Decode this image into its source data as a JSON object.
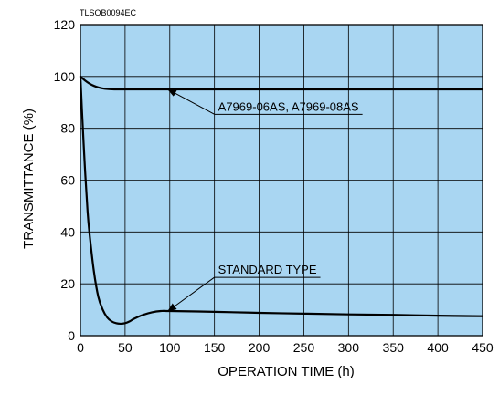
{
  "figure_code": "TLSOB0094EC",
  "chart_data": {
    "type": "line",
    "title": "",
    "xlabel": "OPERATION TIME (h)",
    "ylabel": "TRANSMITTANCE (%)",
    "xlim": [
      0,
      450
    ],
    "ylim": [
      0,
      120
    ],
    "xticks": [
      0,
      50,
      100,
      150,
      200,
      250,
      300,
      350,
      400,
      450
    ],
    "yticks": [
      0,
      20,
      40,
      60,
      80,
      100,
      120
    ],
    "grid": true,
    "plot_background": "#a9d6f2",
    "line_color": "#000000",
    "series": [
      {
        "name": "A7969-06AS, A7969-08AS",
        "x": [
          0,
          5,
          10,
          15,
          20,
          25,
          30,
          40,
          50,
          100,
          200,
          300,
          400,
          450
        ],
        "y": [
          100,
          98.5,
          97.3,
          96.4,
          95.8,
          95.4,
          95.2,
          95.0,
          95.0,
          95.0,
          95.0,
          95.0,
          95.0,
          95.0
        ]
      },
      {
        "name": "STANDARD TYPE",
        "x": [
          0,
          2,
          5,
          8,
          10,
          15,
          20,
          25,
          30,
          35,
          40,
          45,
          50,
          55,
          60,
          70,
          80,
          90,
          100,
          150,
          200,
          250,
          300,
          350,
          400,
          450
        ],
        "y": [
          100,
          85,
          65,
          48,
          40,
          25,
          15,
          10,
          7,
          5.5,
          4.8,
          4.6,
          4.8,
          5.5,
          6.5,
          8,
          9,
          9.5,
          9.5,
          9.2,
          8.8,
          8.5,
          8.2,
          8.0,
          7.7,
          7.5
        ]
      }
    ],
    "annotations": [
      {
        "label": "A7969-06AS, A7969-08AS",
        "series": 0,
        "arrow_to": [
          95,
          95
        ],
        "text_at": [
          150,
          86.8
        ]
      },
      {
        "label": "STANDARD TYPE",
        "series": 1,
        "arrow_to": [
          95,
          9.5
        ],
        "text_at": [
          150,
          23.9
        ]
      }
    ]
  }
}
